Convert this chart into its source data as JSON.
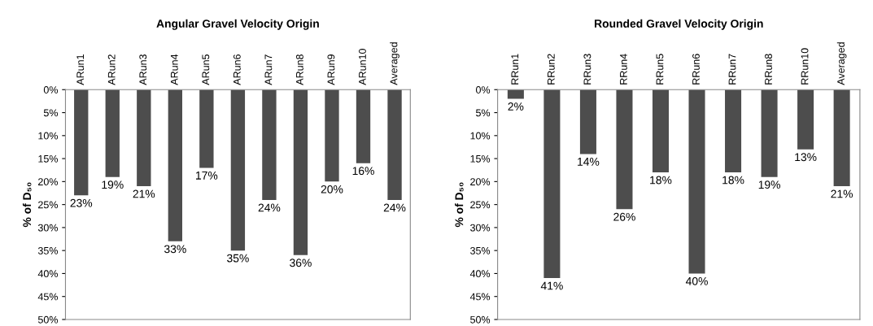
{
  "chart_data": [
    {
      "type": "bar",
      "title": "Angular Gravel Velocity Origin",
      "ylabel": "% of D₅₀",
      "categories": [
        "ARun1",
        "ARun2",
        "ARun3",
        "ARun4",
        "ARun5",
        "ARun6",
        "ARun7",
        "ARun8",
        "ARun9",
        "ARun10",
        "Averaged"
      ],
      "values": [
        23,
        19,
        21,
        33,
        17,
        35,
        24,
        36,
        20,
        16,
        24
      ],
      "value_labels": [
        "23%",
        "19%",
        "21%",
        "33%",
        "17%",
        "35%",
        "24%",
        "36%",
        "20%",
        "16%",
        "24%"
      ],
      "color": "#4d4d4d",
      "ylim": [
        50,
        0
      ],
      "yticks": [
        {
          "value": 0,
          "label": "0%"
        },
        {
          "value": 5,
          "label": "5%"
        },
        {
          "value": 10,
          "label": "10%"
        },
        {
          "value": 15,
          "label": "15%"
        },
        {
          "value": 20,
          "label": "20%"
        },
        {
          "value": 25,
          "label": "25%"
        },
        {
          "value": 30,
          "label": "30%"
        },
        {
          "value": 35,
          "label": "35%"
        },
        {
          "value": 40,
          "label": "40%"
        },
        {
          "value": 45,
          "label": "45%"
        },
        {
          "value": 50,
          "label": "50%"
        }
      ],
      "grid": false,
      "legend": false
    },
    {
      "type": "bar",
      "title": "Rounded Gravel Velocity Origin",
      "ylabel": "% of D₅₀",
      "categories": [
        "RRun1",
        "RRun2",
        "RRun3",
        "RRun4",
        "RRun5",
        "RRun6",
        "RRun7",
        "RRun8",
        "RRun10",
        "Averaged"
      ],
      "values": [
        2,
        41,
        14,
        26,
        18,
        40,
        18,
        19,
        13,
        21
      ],
      "value_labels": [
        "2%",
        "41%",
        "14%",
        "26%",
        "18%",
        "40%",
        "18%",
        "19%",
        "13%",
        "21%"
      ],
      "color": "#4d4d4d",
      "ylim": [
        50,
        0
      ],
      "yticks": [
        {
          "value": 0,
          "label": "0%"
        },
        {
          "value": 5,
          "label": "5%"
        },
        {
          "value": 10,
          "label": "10%"
        },
        {
          "value": 15,
          "label": "15%"
        },
        {
          "value": 20,
          "label": "20%"
        },
        {
          "value": 25,
          "label": "25%"
        },
        {
          "value": 30,
          "label": "30%"
        },
        {
          "value": 35,
          "label": "35%"
        },
        {
          "value": 40,
          "label": "40%"
        },
        {
          "value": 45,
          "label": "45%"
        },
        {
          "value": 50,
          "label": "50%"
        }
      ],
      "grid": false,
      "legend": false
    }
  ]
}
